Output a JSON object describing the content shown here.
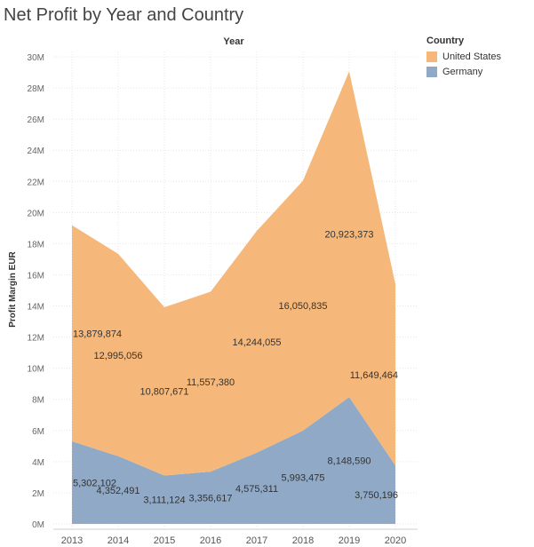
{
  "chart_data": {
    "type": "area",
    "stacked": true,
    "title": "Net Profit by Year and Country",
    "top_label": "Year",
    "ylabel": "Profit Margin EUR",
    "x": [
      "2013",
      "2014",
      "2015",
      "2016",
      "2017",
      "2018",
      "2019",
      "2020"
    ],
    "ylim": [
      0,
      30000000
    ],
    "yticks": [
      0,
      2000000,
      4000000,
      6000000,
      8000000,
      10000000,
      12000000,
      14000000,
      16000000,
      18000000,
      20000000,
      22000000,
      24000000,
      26000000,
      28000000,
      30000000
    ],
    "ytick_labels": [
      "0M",
      "2M",
      "4M",
      "6M",
      "8M",
      "10M",
      "12M",
      "14M",
      "16M",
      "18M",
      "20M",
      "22M",
      "24M",
      "26M",
      "28M",
      "30M"
    ],
    "grid": true,
    "legend": {
      "title": "Country",
      "placement": "top-right",
      "entries": [
        {
          "name": "United States",
          "color": "#f5b87a"
        },
        {
          "name": "Germany",
          "color": "#8fa9c6"
        }
      ]
    },
    "series": [
      {
        "name": "Germany",
        "color": "#8fa9c6",
        "values": [
          5302102,
          4352491,
          3111124,
          3356617,
          4575311,
          5993475,
          8148590,
          3750196
        ],
        "labels": [
          "5,302,102",
          "4,352,491",
          "3,111,124",
          "3,356,617",
          "4,575,311",
          "5,993,475",
          "8,148,590",
          "3,750,196"
        ]
      },
      {
        "name": "United States",
        "color": "#f5b87a",
        "values": [
          13879874,
          12995056,
          10807671,
          11557380,
          14244055,
          16050835,
          20923373,
          11649464
        ],
        "labels": [
          "13,879,874",
          "12,995,056",
          "10,807,671",
          "11,557,380",
          "14,244,055",
          "16,050,835",
          "20,923,373",
          "11,649,464"
        ]
      }
    ]
  }
}
